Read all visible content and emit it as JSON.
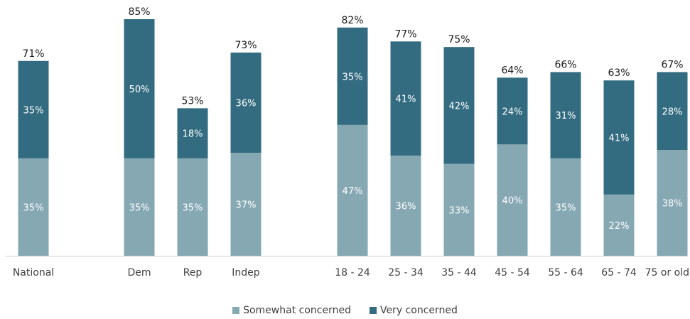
{
  "chart_data": {
    "type": "bar",
    "stacked": true,
    "categories": [
      "National",
      "Dem",
      "Rep",
      "Indep",
      "18 - 24",
      "25 - 34",
      "35 - 44",
      "45 - 54",
      "55 - 64",
      "65 - 74",
      "75 or older"
    ],
    "groups": [
      [
        "National"
      ],
      [
        "Dem",
        "Rep",
        "Indep"
      ],
      [
        "18 - 24",
        "25 - 34",
        "35 - 44",
        "45 - 54",
        "55 - 64",
        "65 - 74",
        "75 or older"
      ]
    ],
    "series": [
      {
        "name": "Somewhat concerned",
        "color": "#86a8b3",
        "values": [
          35,
          35,
          35,
          37,
          47,
          36,
          33,
          40,
          35,
          22,
          38
        ]
      },
      {
        "name": "Very concerned",
        "color": "#336c80",
        "values": [
          35,
          50,
          18,
          36,
          35,
          41,
          42,
          24,
          31,
          41,
          28
        ]
      }
    ],
    "totals": [
      71,
      85,
      53,
      73,
      82,
      77,
      75,
      64,
      66,
      63,
      67
    ],
    "value_suffix": "%",
    "ylim": [
      0,
      85
    ],
    "grid": false,
    "legend_position": "bottom"
  }
}
